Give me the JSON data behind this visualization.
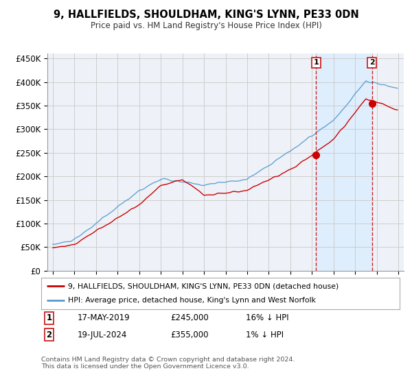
{
  "title": "9, HALLFIELDS, SHOULDHAM, KING'S LYNN, PE33 0DN",
  "subtitle": "Price paid vs. HM Land Registry's House Price Index (HPI)",
  "legend_line1": "9, HALLFIELDS, SHOULDHAM, KING'S LYNN, PE33 0DN (detached house)",
  "legend_line2": "HPI: Average price, detached house, King's Lynn and West Norfolk",
  "sale1_label": "1",
  "sale1_date": "17-MAY-2019",
  "sale1_price": "£245,000",
  "sale1_hpi": "16% ↓ HPI",
  "sale1_year": 2019.38,
  "sale1_value": 245000,
  "sale2_label": "2",
  "sale2_date": "19-JUL-2024",
  "sale2_price": "£355,000",
  "sale2_hpi": "1% ↓ HPI",
  "sale2_year": 2024.55,
  "sale2_value": 355000,
  "copyright": "Contains HM Land Registry data © Crown copyright and database right 2024.\nThis data is licensed under the Open Government Licence v3.0.",
  "red_color": "#cc0000",
  "blue_color": "#5599cc",
  "shade_color": "#ddeeff",
  "background_color": "#ffffff",
  "grid_color": "#cccccc",
  "ylim": [
    0,
    460000
  ],
  "xlim": [
    1994.5,
    2027.5
  ],
  "fig_width": 6.0,
  "fig_height": 5.6,
  "dpi": 100
}
